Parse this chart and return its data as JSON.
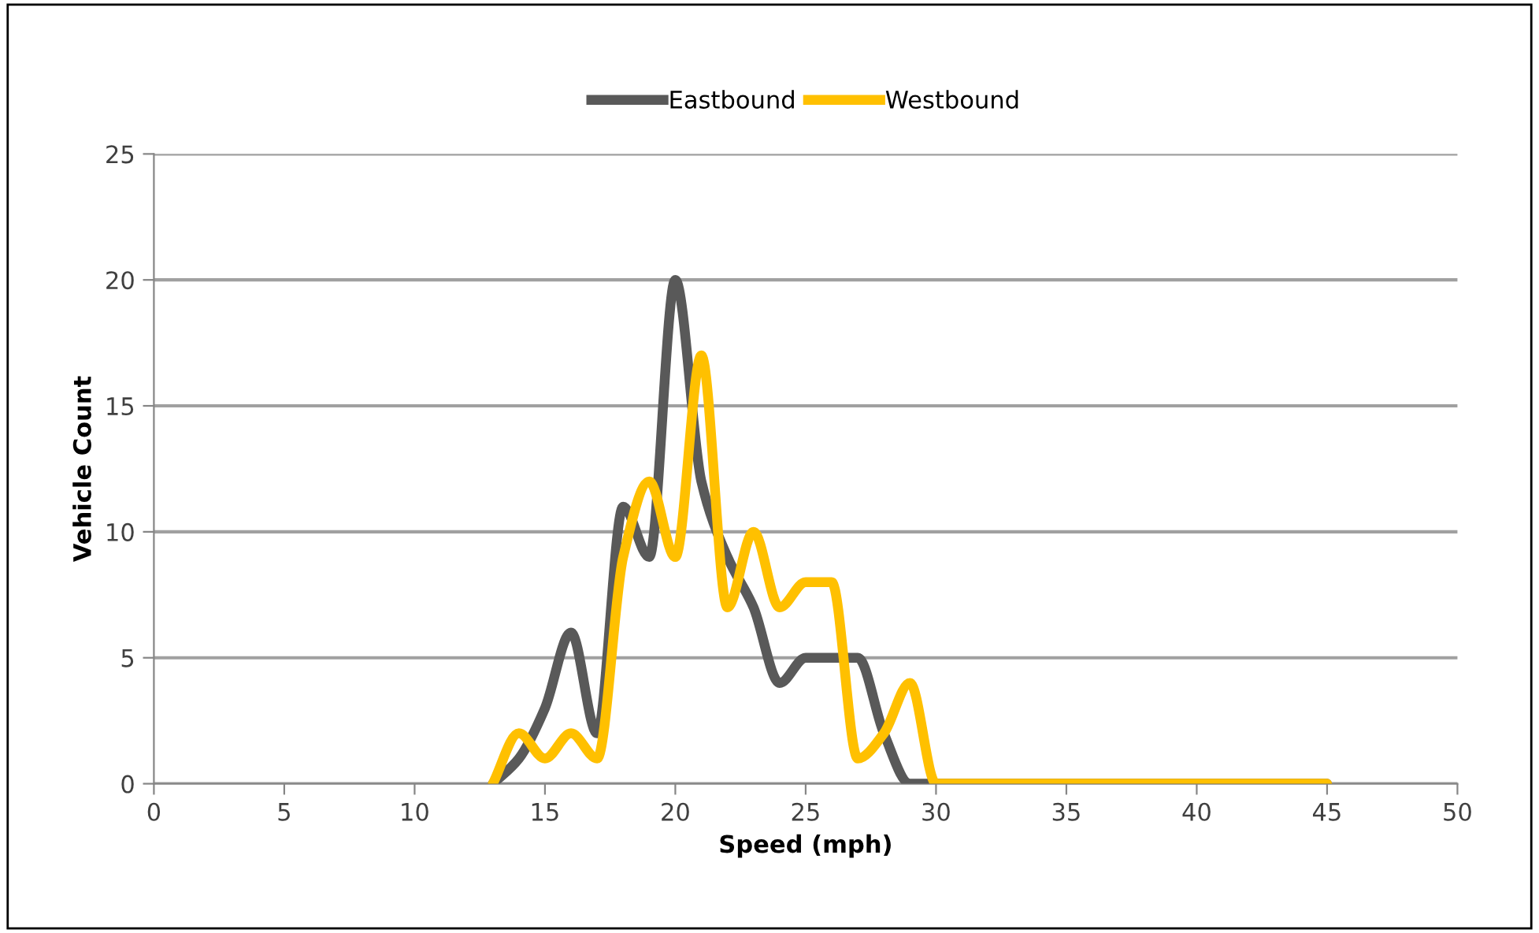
{
  "chart_data": {
    "type": "line",
    "xlabel": "Speed (mph)",
    "ylabel": "Vehicle Count",
    "x": [
      13,
      14,
      15,
      16,
      17,
      18,
      19,
      20,
      21,
      22,
      23,
      24,
      25,
      26,
      27,
      28,
      29,
      30,
      31,
      32,
      33,
      34,
      35,
      36,
      37,
      38,
      39,
      40,
      41,
      42,
      43,
      44,
      45
    ],
    "series": [
      {
        "name": "Eastbound",
        "color": "#595959",
        "values": [
          0,
          1,
          3,
          6,
          2,
          11,
          9,
          20,
          12,
          9,
          7,
          4,
          5,
          5,
          5,
          2,
          0,
          0,
          0,
          0,
          0,
          0,
          0,
          0,
          0,
          0,
          0,
          0,
          0,
          0,
          0,
          0,
          0
        ]
      },
      {
        "name": "Westbound",
        "color": "#ffc000",
        "values": [
          0,
          2,
          1,
          2,
          1,
          9,
          12,
          9,
          17,
          7,
          10,
          7,
          8,
          8,
          1,
          2,
          4,
          0,
          0,
          0,
          0,
          0,
          0,
          0,
          0,
          0,
          0,
          0,
          0,
          0,
          0,
          0,
          0
        ]
      }
    ],
    "xlim": [
      0,
      50
    ],
    "xticks": [
      0,
      5,
      10,
      15,
      20,
      25,
      30,
      35,
      40,
      45,
      50
    ],
    "ylim": [
      0,
      25
    ],
    "yticks": [
      0,
      5,
      10,
      15,
      20,
      25
    ],
    "grid": "y",
    "legend": "top",
    "marker": "none",
    "line_style": "solid"
  }
}
